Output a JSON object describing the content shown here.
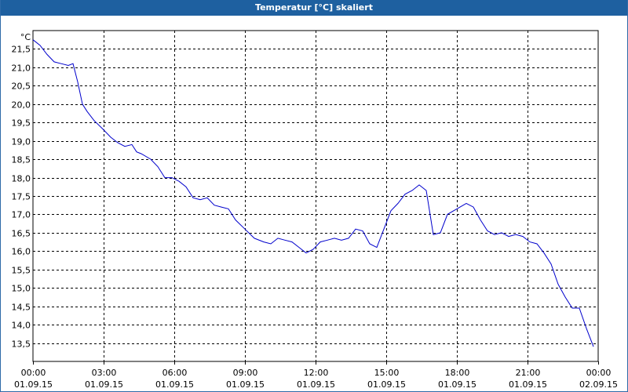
{
  "window": {
    "title": "Temperatur [°C] skaliert"
  },
  "chart_data": {
    "type": "line",
    "title": "Temperatur [°C] skaliert",
    "ylabel": "°C",
    "ylim": [
      13.0,
      22.0
    ],
    "yticks": [
      "21,5",
      "21,0",
      "20,5",
      "20,0",
      "19,5",
      "19,0",
      "18,5",
      "18,0",
      "17,5",
      "17,0",
      "16,5",
      "16,0",
      "15,5",
      "15,0",
      "14,5",
      "14,0",
      "13,5"
    ],
    "ytick_values": [
      21.5,
      21.0,
      20.5,
      20.0,
      19.5,
      19.0,
      18.5,
      18.0,
      17.5,
      17.0,
      16.5,
      16.0,
      15.5,
      15.0,
      14.5,
      14.0,
      13.5
    ],
    "xlim": [
      0,
      24
    ],
    "xticks": [
      {
        "time": "00:00",
        "date": "01.09.15"
      },
      {
        "time": "03:00",
        "date": "01.09.15"
      },
      {
        "time": "06:00",
        "date": "01.09.15"
      },
      {
        "time": "09:00",
        "date": "01.09.15"
      },
      {
        "time": "12:00",
        "date": "01.09.15"
      },
      {
        "time": "15:00",
        "date": "01.09.15"
      },
      {
        "time": "18:00",
        "date": "01.09.15"
      },
      {
        "time": "21:00",
        "date": "01.09.15"
      },
      {
        "time": "00:00",
        "date": "02.09.15"
      }
    ],
    "xtick_hours": [
      0,
      3,
      6,
      9,
      12,
      15,
      18,
      21,
      24
    ],
    "grid": true,
    "line_color": "#0000cc",
    "series": [
      {
        "x": [
          0.0,
          0.3,
          0.6,
          0.9,
          1.2,
          1.5,
          1.7,
          1.9,
          2.1,
          2.3,
          2.6,
          3.0,
          3.3,
          3.6,
          3.9,
          4.2,
          4.4,
          4.6,
          5.0,
          5.3,
          5.6,
          5.9,
          6.2,
          6.5,
          6.8,
          7.1,
          7.4,
          7.7,
          8.0,
          8.3,
          8.6,
          9.0,
          9.4,
          9.8,
          10.1,
          10.4,
          10.7,
          11.0,
          11.3,
          11.6,
          11.9,
          12.2,
          12.5,
          12.8,
          13.1,
          13.4,
          13.7,
          14.0,
          14.3,
          14.6,
          14.9,
          15.2,
          15.5,
          15.8,
          16.1,
          16.4,
          16.7,
          17.0,
          17.3,
          17.6,
          18.0,
          18.4,
          18.7,
          19.0,
          19.3,
          19.6,
          19.9,
          20.2,
          20.5,
          20.8,
          21.1,
          21.4,
          21.7,
          22.0,
          22.3,
          22.6,
          22.9,
          23.2,
          23.5,
          23.8
        ],
        "y": [
          21.75,
          21.6,
          21.35,
          21.15,
          21.1,
          21.05,
          21.1,
          20.6,
          20.0,
          19.8,
          19.55,
          19.3,
          19.1,
          18.95,
          18.85,
          18.9,
          18.7,
          18.65,
          18.5,
          18.3,
          18.0,
          18.0,
          17.9,
          17.75,
          17.45,
          17.4,
          17.45,
          17.25,
          17.2,
          17.15,
          16.85,
          16.6,
          16.35,
          16.25,
          16.2,
          16.35,
          16.3,
          16.25,
          16.1,
          15.95,
          16.05,
          16.25,
          16.3,
          16.35,
          16.3,
          16.35,
          16.6,
          16.55,
          16.2,
          16.1,
          16.6,
          17.1,
          17.3,
          17.55,
          17.65,
          17.8,
          17.65,
          16.45,
          16.5,
          17.0,
          17.15,
          17.3,
          17.2,
          16.85,
          16.55,
          16.45,
          16.5,
          16.4,
          16.45,
          16.4,
          16.25,
          16.2,
          15.95,
          15.65,
          15.1,
          14.75,
          14.45,
          14.45,
          13.9,
          13.4
        ]
      }
    ]
  }
}
